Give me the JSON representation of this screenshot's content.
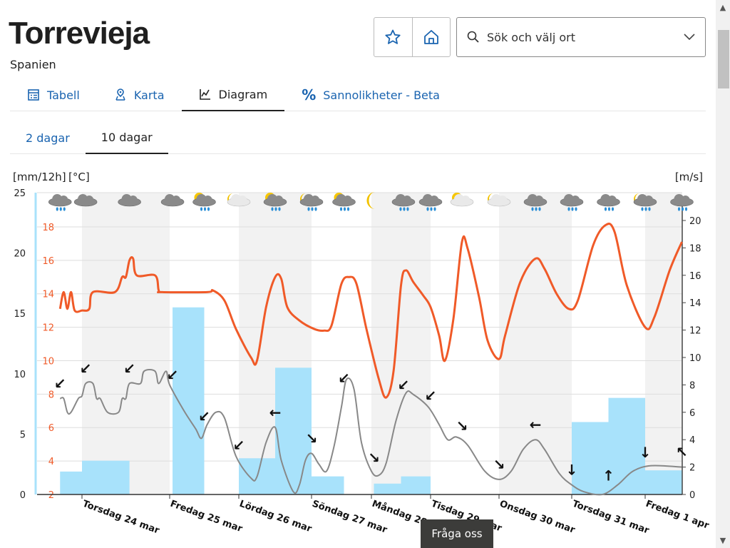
{
  "header": {
    "title": "Torrevieja",
    "country": "Spanien"
  },
  "actions": {
    "favorite_icon": "star-icon",
    "home_icon": "home-icon"
  },
  "search": {
    "placeholder": "Sök och välj ort",
    "icon": "search-icon",
    "dropdown_icon": "chevron-down-icon"
  },
  "tabs": [
    {
      "label": "Tabell",
      "icon": "table-icon",
      "active": false
    },
    {
      "label": "Karta",
      "icon": "map-pin-icon",
      "active": false
    },
    {
      "label": "Diagram",
      "icon": "chart-icon",
      "active": true
    },
    {
      "label": "Sannolikheter - Beta",
      "icon": "percent-icon",
      "active": false
    }
  ],
  "subtabs": [
    {
      "label": "2 dagar",
      "active": false
    },
    {
      "label": "10 dagar",
      "active": true
    }
  ],
  "chat_button": "Fråga oss",
  "colors": {
    "temperature": "#f05a28",
    "precipitation": "#a8e2fb",
    "wind": "#888888",
    "accent": "#1a64b0"
  },
  "chart_data": {
    "type": "line",
    "left_axis_label": "[mm/12h]",
    "temp_axis_label": "[°C]",
    "right_axis_label": "[m/s]",
    "precip_ticks": [
      "0",
      "5",
      "10",
      "15",
      "20",
      "25"
    ],
    "precip_range": [
      0,
      25
    ],
    "temp_ticks": [
      "2",
      "4",
      "6",
      "8",
      "10",
      "12",
      "14",
      "16",
      "18"
    ],
    "temp_range": [
      2,
      20
    ],
    "wind_ticks": [
      "0",
      "2",
      "4",
      "6",
      "8",
      "10",
      "12",
      "14",
      "16",
      "18",
      "20"
    ],
    "wind_range": [
      0,
      22
    ],
    "grid": true,
    "x_tick_labels": [
      "Torsdag 24 mar",
      "Fredag 25 mar",
      "Lördag 26 mar",
      "Söndag 27 mar",
      "Måndag 28 mar",
      "Tisdag 29 mar",
      "Onsdag 30 mar",
      "Torsdag 31 mar",
      "Fredag 1 apr"
    ],
    "temperature": [
      [
        "23 mar 18",
        13.1
      ],
      [
        "23 mar 19",
        14.1
      ],
      [
        "23 mar 20",
        13.1
      ],
      [
        "23 mar 21",
        14.1
      ],
      [
        "23 mar 22",
        13.0
      ],
      [
        "24 mar 00",
        13.0
      ],
      [
        "24 mar 02",
        13.1
      ],
      [
        "24 mar 03",
        14.1
      ],
      [
        "24 mar 09",
        14.1
      ],
      [
        "24 mar 11",
        15.0
      ],
      [
        "24 mar 12",
        15.0
      ],
      [
        "24 mar 13",
        16.0
      ],
      [
        "24 mar 14",
        16.1
      ],
      [
        "24 mar 15",
        15.1
      ],
      [
        "24 mar 20",
        15.1
      ],
      [
        "24 mar 21",
        14.2
      ],
      [
        "24 mar 22",
        14.1
      ],
      [
        "25 mar 13",
        14.1
      ],
      [
        "25 mar 15",
        14.2
      ],
      [
        "25 mar 19",
        13.6
      ],
      [
        "25 mar 23",
        11.9
      ],
      [
        "26 mar 04",
        10.2
      ],
      [
        "26 mar 06",
        10.0
      ],
      [
        "26 mar 09",
        13.2
      ],
      [
        "26 mar 12",
        15.0
      ],
      [
        "26 mar 14",
        14.9
      ],
      [
        "26 mar 16",
        13.2
      ],
      [
        "26 mar 20",
        12.4
      ],
      [
        "27 mar 01",
        11.9
      ],
      [
        "27 mar 05",
        11.8
      ],
      [
        "27 mar 08",
        12.1
      ],
      [
        "27 mar 12",
        14.6
      ],
      [
        "27 mar 15",
        15.0
      ],
      [
        "27 mar 18",
        14.6
      ],
      [
        "27 mar 22",
        11.9
      ],
      [
        "28 mar 03",
        8.9
      ],
      [
        "28 mar 06",
        7.8
      ],
      [
        "28 mar 09",
        9.4
      ],
      [
        "28 mar 12",
        14.5
      ],
      [
        "28 mar 14",
        15.4
      ],
      [
        "28 mar 17",
        14.7
      ],
      [
        "28 mar 21",
        13.9
      ],
      [
        "29 mar 00",
        13.2
      ],
      [
        "29 mar 03",
        11.5
      ],
      [
        "29 mar 05",
        10.0
      ],
      [
        "29 mar 08",
        12.5
      ],
      [
        "29 mar 11",
        17.1
      ],
      [
        "29 mar 13",
        16.7
      ],
      [
        "29 mar 17",
        13.8
      ],
      [
        "29 mar 20",
        11.2
      ],
      [
        "30 mar 00",
        10.1
      ],
      [
        "30 mar 02",
        11.5
      ],
      [
        "30 mar 07",
        14.7
      ],
      [
        "30 mar 12",
        16.1
      ],
      [
        "30 mar 15",
        15.5
      ],
      [
        "30 mar 19",
        14.0
      ],
      [
        "30 mar 23",
        13.1
      ],
      [
        "31 mar 02",
        13.6
      ],
      [
        "31 mar 07",
        16.9
      ],
      [
        "31 mar 11",
        18.1
      ],
      [
        "31 mar 14",
        17.7
      ],
      [
        "31 mar 18",
        14.5
      ],
      [
        "1 apr 00",
        12.0
      ],
      [
        "1 apr 03",
        12.6
      ],
      [
        "1 apr 08",
        15.4
      ],
      [
        "1 apr 12",
        17.1
      ]
    ],
    "wind_speed": [
      [
        "23 mar 18",
        7.0
      ],
      [
        "23 mar 19",
        7.0
      ],
      [
        "23 mar 20",
        6.0
      ],
      [
        "23 mar 21",
        6.0
      ],
      [
        "23 mar 23",
        7.0
      ],
      [
        "24 mar 00",
        7.2
      ],
      [
        "24 mar 01",
        8.1
      ],
      [
        "24 mar 03",
        8.1
      ],
      [
        "24 mar 04",
        7.0
      ],
      [
        "24 mar 05",
        7.0
      ],
      [
        "24 mar 07",
        6.0
      ],
      [
        "24 mar 10",
        6.0
      ],
      [
        "24 mar 11",
        7.0
      ],
      [
        "24 mar 12",
        7.0
      ],
      [
        "24 mar 13",
        8.1
      ],
      [
        "24 mar 16",
        8.1
      ],
      [
        "24 mar 17",
        9.0
      ],
      [
        "24 mar 20",
        9.0
      ],
      [
        "24 mar 21",
        8.1
      ],
      [
        "24 mar 23",
        9.0
      ],
      [
        "25 mar 00",
        8.0
      ],
      [
        "25 mar 05",
        6.1
      ],
      [
        "25 mar 09",
        4.8
      ],
      [
        "25 mar 11",
        4.1
      ],
      [
        "25 mar 13",
        5.1
      ],
      [
        "25 mar 16",
        6.0
      ],
      [
        "25 mar 19",
        5.6
      ],
      [
        "25 mar 23",
        2.8
      ],
      [
        "26 mar 04",
        1.2
      ],
      [
        "26 mar 06",
        1.3
      ],
      [
        "26 mar 09",
        3.8
      ],
      [
        "26 mar 12",
        4.9
      ],
      [
        "26 mar 14",
        2.5
      ],
      [
        "26 mar 18",
        0.2
      ],
      [
        "26 mar 20",
        0.7
      ],
      [
        "26 mar 22",
        2.5
      ],
      [
        "27 mar 00",
        3.0
      ],
      [
        "27 mar 03",
        2.2
      ],
      [
        "27 mar 06",
        1.7
      ],
      [
        "27 mar 09",
        3.5
      ],
      [
        "27 mar 12",
        6.4
      ],
      [
        "27 mar 14",
        8.4
      ],
      [
        "27 mar 17",
        7.7
      ],
      [
        "27 mar 20",
        3.8
      ],
      [
        "28 mar 00",
        1.7
      ],
      [
        "28 mar 03",
        1.4
      ],
      [
        "28 mar 06",
        2.3
      ],
      [
        "28 mar 10",
        5.4
      ],
      [
        "28 mar 14",
        7.4
      ],
      [
        "28 mar 17",
        7.3
      ],
      [
        "28 mar 23",
        6.4
      ],
      [
        "29 mar 03",
        5.1
      ],
      [
        "29 mar 06",
        4.0
      ],
      [
        "29 mar 09",
        4.2
      ],
      [
        "29 mar 13",
        3.6
      ],
      [
        "29 mar 19",
        1.7
      ],
      [
        "30 mar 00",
        1.1
      ],
      [
        "30 mar 04",
        1.7
      ],
      [
        "30 mar 08",
        3.3
      ],
      [
        "30 mar 12",
        4.0
      ],
      [
        "30 mar 15",
        3.3
      ],
      [
        "30 mar 20",
        1.5
      ],
      [
        "31 mar 00",
        0.7
      ],
      [
        "31 mar 04",
        0.2
      ],
      [
        "31 mar 10",
        0.0
      ],
      [
        "31 mar 15",
        0.7
      ],
      [
        "31 mar 20",
        1.7
      ],
      [
        "1 apr 02",
        2.1
      ],
      [
        "1 apr 12",
        2.0
      ]
    ],
    "precipitation": [
      {
        "from": "23 mar 18",
        "to": "24 mar 00",
        "value": 1.9
      },
      {
        "from": "24 mar 00",
        "to": "24 mar 13",
        "value": 2.8
      },
      {
        "from": "25 mar 01",
        "to": "25 mar 12",
        "value": 15.5
      },
      {
        "from": "26 mar 00",
        "to": "26 mar 12",
        "value": 3.0
      },
      {
        "from": "26 mar 12",
        "to": "27 mar 00",
        "value": 10.5
      },
      {
        "from": "27 mar 00",
        "to": "27 mar 13",
        "value": 1.5
      },
      {
        "from": "28 mar 01",
        "to": "28 mar 12",
        "value": 0.9
      },
      {
        "from": "28 mar 12",
        "to": "29 mar 00",
        "value": 1.5
      },
      {
        "from": "31 mar 00",
        "to": "31 mar 12",
        "value": 6.0
      },
      {
        "from": "31 mar 12",
        "to": "1 apr 00",
        "value": 8.0
      },
      {
        "from": "1 apr 00",
        "to": "1 apr 12",
        "value": 2.0
      }
    ],
    "symbols": [
      {
        "time": "23 mar 18",
        "icon": "cloud-rain",
        "wind_dir": "↙"
      },
      {
        "time": "24 mar 01",
        "icon": "cloud",
        "wind_dir": "↙"
      },
      {
        "time": "24 mar 13",
        "icon": "cloud",
        "wind_dir": "↙"
      },
      {
        "time": "25 mar 01",
        "icon": "cloud",
        "wind_dir": "↙"
      },
      {
        "time": "25 mar 12",
        "icon": "sun-cloud-rain",
        "wind_dir": "↙"
      },
      {
        "time": "26 mar 00",
        "icon": "moon-cloud",
        "wind_dir": "↙"
      },
      {
        "time": "26 mar 12",
        "icon": "sun-cloud-rain",
        "wind_dir": "←"
      },
      {
        "time": "27 mar 00",
        "icon": "moon-cloud-rain",
        "wind_dir": "↘"
      },
      {
        "time": "27 mar 13",
        "icon": "sun-cloud-rain",
        "wind_dir": "↙"
      },
      {
        "time": "28 mar 01",
        "icon": "moon",
        "wind_dir": "↘"
      },
      {
        "time": "28 mar 13",
        "icon": "cloud-rain",
        "wind_dir": "↙"
      },
      {
        "time": "29 mar 00",
        "icon": "cloud-rain",
        "wind_dir": "↙"
      },
      {
        "time": "29 mar 11",
        "icon": "sun-cloud",
        "wind_dir": "↘"
      },
      {
        "time": "30 mar 00",
        "icon": "moon-cloud",
        "wind_dir": "↘"
      },
      {
        "time": "30 mar 12",
        "icon": "cloud-rain",
        "wind_dir": "←"
      },
      {
        "time": "31 mar 00",
        "icon": "cloud-rain",
        "wind_dir": "↓"
      },
      {
        "time": "31 mar 12",
        "icon": "cloud-rain",
        "wind_dir": "↑"
      },
      {
        "time": "1 apr 00",
        "icon": "moon-cloud-rain",
        "wind_dir": "↓"
      },
      {
        "time": "1 apr 12",
        "icon": "cloud-rain",
        "wind_dir": "↖"
      }
    ]
  }
}
